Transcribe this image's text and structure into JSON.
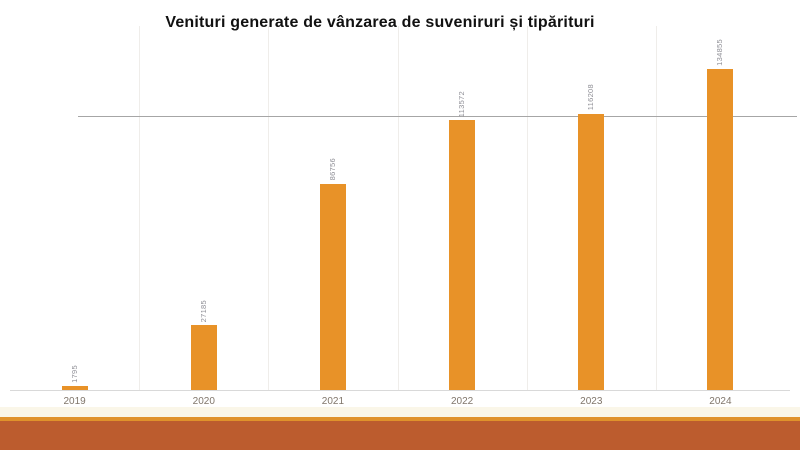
{
  "chart_data": {
    "type": "bar",
    "title": "Venituri generate de vânzarea de suveniruri și tipărituri",
    "categories": [
      "2019",
      "2020",
      "2021",
      "2022",
      "2023",
      "2024"
    ],
    "values": [
      1795,
      27185,
      86756,
      113572,
      116208,
      134855
    ],
    "data_labels": [
      "1795",
      "27185",
      "86756",
      "113572",
      "116208",
      "134855"
    ],
    "data_label_rotation": "vertical-bottom-to-top",
    "xlabel": "",
    "ylabel": "",
    "ylim": [
      0,
      153000
    ],
    "y_axis_visible": false,
    "grid": "vertical-category-separators",
    "legend": "none",
    "reference_line": {
      "value": 115000,
      "color": "#A6A6A6"
    },
    "colors": {
      "bar_fill": "#E89228",
      "title_text": "#111111",
      "data_label_text": "#8F8F96",
      "axis_label_text": "#80766B",
      "gridline": "#EFEDEA",
      "axis_line": "#D9D9D9",
      "plot_background": "#FFFFFF"
    }
  },
  "footer": {
    "background_color": "#FAF6E8",
    "stripe_color": "#E0922B",
    "band_color": "#BC5C2E"
  }
}
